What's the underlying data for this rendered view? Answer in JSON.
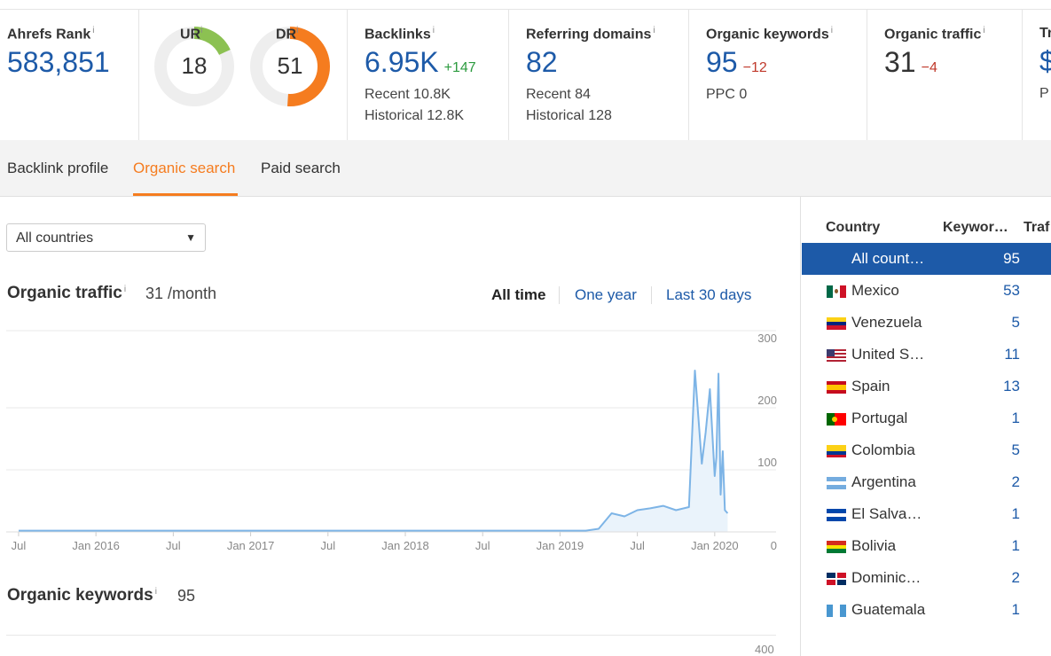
{
  "metrics": {
    "ahrefs_rank": {
      "label": "Ahrefs Rank",
      "info": "i",
      "value": "583,851"
    },
    "ur": {
      "label": "UR",
      "info": "i",
      "value": "18",
      "score": 18
    },
    "dr": {
      "label": "DR",
      "info": "i",
      "value": "51",
      "score": 51
    },
    "backlinks": {
      "label": "Backlinks",
      "info": "i",
      "value": "6.95K",
      "delta": "+147",
      "recent": "Recent 10.8K",
      "historical": "Historical 12.8K"
    },
    "referring_domains": {
      "label": "Referring domains",
      "info": "i",
      "value": "82",
      "recent": "Recent 84",
      "historical": "Historical 128"
    },
    "organic_keywords": {
      "label": "Organic keywords",
      "info": "i",
      "value": "95",
      "delta": "−12",
      "ppc": "PPC 0"
    },
    "organic_traffic": {
      "label": "Organic traffic",
      "info": "i",
      "value": "31",
      "delta": "−4"
    },
    "traffic_value_partial": {
      "label": "Tr",
      "value": "$",
      "sub": "P"
    }
  },
  "colors": {
    "accent": "#f57c1f",
    "link": "#1d5aa8",
    "ur_ring": "#8cc152",
    "dr_ring": "#f57c1f",
    "ring_bg": "#eeeeee",
    "chart_line": "#7db4e6",
    "chart_fill": "#eaf3fb"
  },
  "tabs": [
    {
      "label": "Backlink profile",
      "active": false
    },
    {
      "label": "Organic search",
      "active": true
    },
    {
      "label": "Paid search",
      "active": false
    }
  ],
  "country_select": {
    "value": "All countries",
    "icon": "caret-down-icon"
  },
  "organic_traffic_section": {
    "title": "Organic traffic",
    "info": "i",
    "value": "31 /month"
  },
  "ranges": [
    {
      "label": "All time",
      "active": true
    },
    {
      "label": "One year",
      "active": false
    },
    {
      "label": "Last 30 days",
      "active": false
    }
  ],
  "organic_keywords_section": {
    "title": "Organic keywords",
    "info": "i",
    "value": "95",
    "axis_top": "400"
  },
  "chart_data": {
    "type": "area",
    "x_ticks": [
      "Jul",
      "Jan 2016",
      "Jul",
      "Jan 2017",
      "Jul",
      "Jan 2018",
      "Jul",
      "Jan 2019",
      "Jul",
      "Jan 2020"
    ],
    "y_ticks": [
      "300",
      "200",
      "100",
      "0"
    ],
    "ylim": [
      0,
      300
    ],
    "grid": true,
    "series": [
      {
        "x": [
          "2015-07",
          "2016-01",
          "2016-07",
          "2017-01",
          "2017-07",
          "2018-01",
          "2018-07",
          "2019-01",
          "2019-03",
          "2019-04",
          "2019-05",
          "2019-06",
          "2019-07",
          "2019-08",
          "2019-09",
          "2019-10",
          "2019-11",
          "2019-11-15",
          "2019-12",
          "2019-12-10",
          "2019-12-20",
          "2020-01",
          "2020-01-05",
          "2020-01-10",
          "2020-01-15",
          "2020-01-20",
          "2020-01-25",
          "2020-02"
        ],
        "y": [
          2,
          2,
          2,
          2,
          2,
          2,
          2,
          2,
          2,
          5,
          30,
          25,
          35,
          38,
          42,
          35,
          40,
          260,
          110,
          160,
          230,
          90,
          120,
          255,
          60,
          130,
          35,
          30
        ]
      }
    ]
  },
  "country_panel": {
    "headers": {
      "country": "Country",
      "keywords": "Keywor…",
      "traffic": "Traf"
    },
    "rows": [
      {
        "name": "All count…",
        "count": "95",
        "flag": "none",
        "selected": true
      },
      {
        "name": "Mexico",
        "count": "53",
        "flag": "mx"
      },
      {
        "name": "Venezuela",
        "count": "5",
        "flag": "ve"
      },
      {
        "name": "United S…",
        "count": "11",
        "flag": "us"
      },
      {
        "name": "Spain",
        "count": "13",
        "flag": "es"
      },
      {
        "name": "Portugal",
        "count": "1",
        "flag": "pt"
      },
      {
        "name": "Colombia",
        "count": "5",
        "flag": "co"
      },
      {
        "name": "Argentina",
        "count": "2",
        "flag": "ar"
      },
      {
        "name": "El Salva…",
        "count": "1",
        "flag": "sv"
      },
      {
        "name": "Bolivia",
        "count": "1",
        "flag": "bo"
      },
      {
        "name": "Dominic…",
        "count": "2",
        "flag": "do"
      },
      {
        "name": "Guatemala",
        "count": "1",
        "flag": "gt"
      }
    ]
  }
}
